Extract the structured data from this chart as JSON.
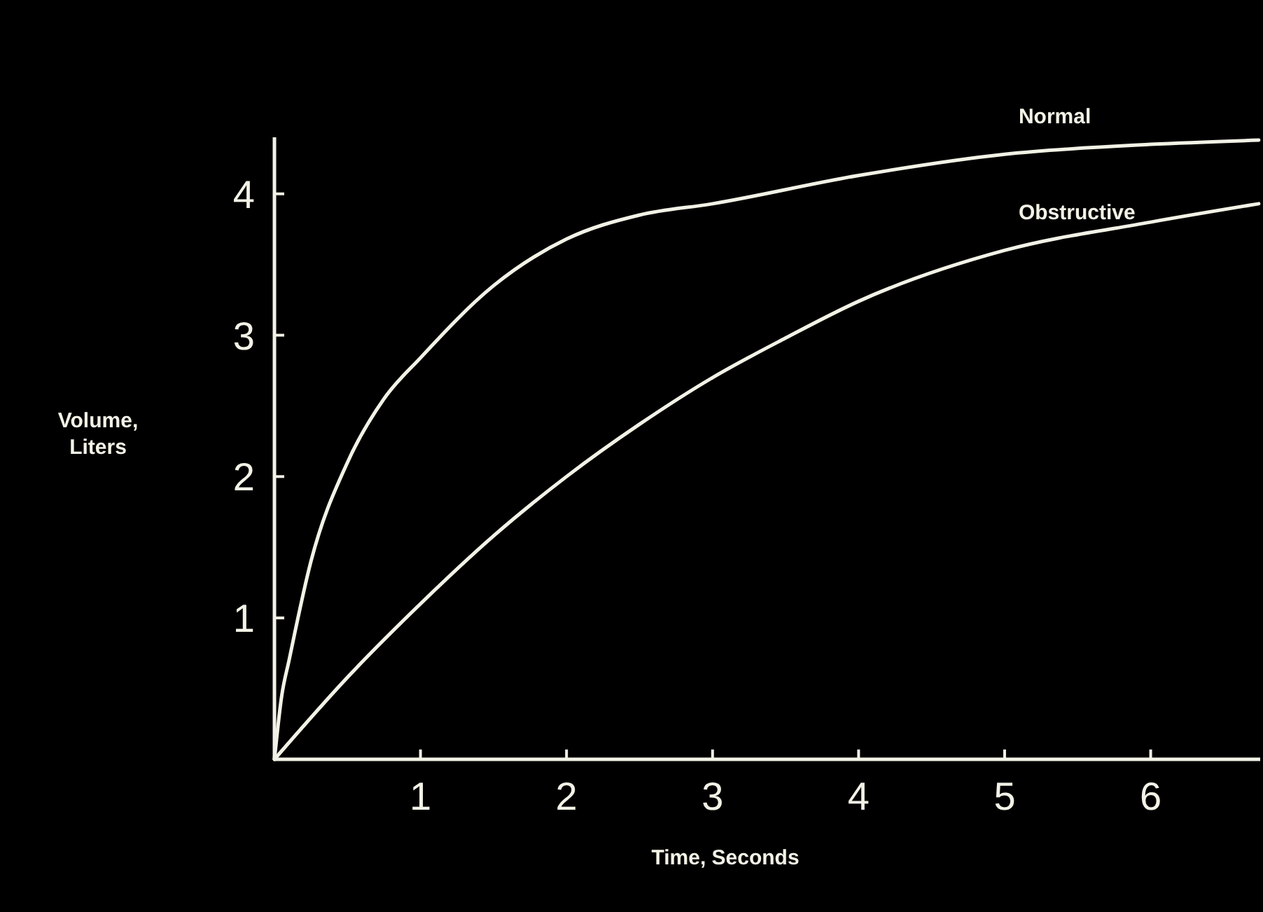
{
  "chart_data": {
    "type": "line",
    "xlabel": "Time, Seconds",
    "ylabel": "Volume, Liters",
    "xlim": [
      0,
      6.75
    ],
    "ylim": [
      0,
      4.4
    ],
    "xticks": [
      1,
      2,
      3,
      4,
      5,
      6
    ],
    "yticks": [
      1,
      2,
      3,
      4
    ],
    "grid": false,
    "marker": "none",
    "line_style": "solid",
    "series": [
      {
        "name": "Normal",
        "color": "#f2f2e6",
        "x": [
          0,
          0.05,
          0.1,
          0.25,
          0.5,
          0.75,
          1,
          1.5,
          2,
          2.5,
          3,
          4,
          5,
          6,
          6.74
        ],
        "values": [
          0,
          0.45,
          0.7,
          1.4,
          2.1,
          2.55,
          2.84,
          3.35,
          3.68,
          3.85,
          3.93,
          4.13,
          4.28,
          4.35,
          4.38
        ]
      },
      {
        "name": "Obstructive",
        "color": "#f2f2e6",
        "x": [
          0,
          0.5,
          1,
          1.5,
          2,
          2.5,
          3,
          3.5,
          4,
          5,
          6,
          6.74
        ],
        "values": [
          0,
          0.58,
          1.1,
          1.58,
          2.0,
          2.37,
          2.7,
          2.98,
          3.24,
          3.6,
          3.8,
          3.93
        ]
      }
    ]
  }
}
